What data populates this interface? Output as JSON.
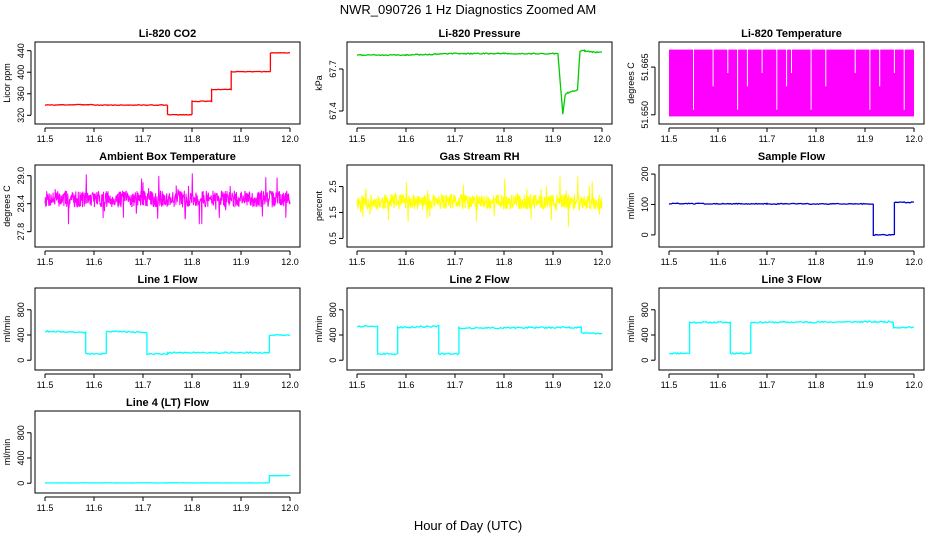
{
  "figure": {
    "title": "NWR_090726  1 Hz Diagnostics Zoomed AM",
    "xlabel": "Hour of Day (UTC)"
  },
  "chart_data": [
    {
      "type": "line",
      "title": "Li-820 CO2",
      "ylabel": "Licor ppm",
      "xlim": [
        11.5,
        12.0
      ],
      "ylim": [
        315,
        445
      ],
      "xticks": [
        "11.5",
        "11.6",
        "11.7",
        "11.8",
        "11.9",
        "12.0"
      ],
      "yticks": [
        "320",
        "360",
        "400",
        "440"
      ],
      "ytick_values": [
        320,
        360,
        400,
        440
      ],
      "color": "#ff0000",
      "noise": 0.6,
      "x": [
        11.5,
        11.6,
        11.6,
        11.75,
        11.75,
        11.8,
        11.8,
        11.84,
        11.84,
        11.88,
        11.88,
        11.96,
        11.96,
        12.0
      ],
      "y": [
        339,
        340,
        339,
        339,
        321,
        321,
        346,
        346,
        368,
        368,
        401,
        401,
        436,
        436
      ]
    },
    {
      "type": "line",
      "title": "Li-820 Pressure",
      "ylabel": "kPa",
      "xlim": [
        11.5,
        12.0
      ],
      "ylim": [
        67.35,
        67.85
      ],
      "xticks": [
        "11.5",
        "11.6",
        "11.7",
        "11.8",
        "11.9",
        "12.0"
      ],
      "yticks": [
        "67.4",
        "67.7"
      ],
      "ytick_values": [
        67.4,
        67.7
      ],
      "color": "#00cc00",
      "noise": 0.004,
      "x": [
        11.5,
        11.6,
        11.7,
        11.8,
        11.91,
        11.92,
        11.925,
        11.93,
        11.95,
        11.955,
        11.965,
        11.98,
        12.0
      ],
      "y": [
        67.8,
        67.8,
        67.81,
        67.81,
        67.81,
        67.38,
        67.52,
        67.53,
        67.55,
        67.83,
        67.83,
        67.82,
        67.82
      ]
    },
    {
      "type": "band",
      "title": "Li-820 Temperature",
      "ylabel": "degrees C",
      "xlim": [
        11.5,
        12.0
      ],
      "ylim": [
        51.649,
        51.671
      ],
      "xticks": [
        "11.5",
        "11.6",
        "11.7",
        "11.8",
        "11.9",
        "12.0"
      ],
      "yticks": [
        "51.650",
        "51.665"
      ],
      "ytick_values": [
        51.65,
        51.665
      ],
      "color": "#ff00ff",
      "band_low": 51.6495,
      "band_high": 51.6705,
      "gap_x": [
        11.55,
        11.59,
        11.62,
        11.64,
        11.66,
        11.69,
        11.72,
        11.74,
        11.75,
        11.79,
        11.82,
        11.88,
        11.91,
        11.93,
        11.96,
        11.98
      ]
    },
    {
      "type": "noise",
      "title": "Ambient Box Temperature",
      "ylabel": "degrees C",
      "xlim": [
        11.5,
        12.0
      ],
      "ylim": [
        27.6,
        29.1
      ],
      "xticks": [
        "11.5",
        "11.6",
        "11.7",
        "11.8",
        "11.9",
        "12.0"
      ],
      "yticks": [
        "27.8",
        "28.4",
        "29.0"
      ],
      "ytick_values": [
        27.8,
        28.4,
        29.0
      ],
      "color": "#ff00ff",
      "center": 28.5,
      "spread": 0.18,
      "spike": 0.55,
      "seed": 7
    },
    {
      "type": "noise",
      "title": "Gas Stream RH",
      "ylabel": "percent",
      "xlim": [
        11.5,
        12.0
      ],
      "ylim": [
        0.4,
        3.1
      ],
      "xticks": [
        "11.5",
        "11.6",
        "11.7",
        "11.8",
        "11.9",
        "12.0"
      ],
      "yticks": [
        "0.5",
        "1.5",
        "2.5"
      ],
      "ytick_values": [
        0.5,
        1.5,
        2.5
      ],
      "color": "#ffff00",
      "center": 1.9,
      "spread": 0.3,
      "spike": 1.0,
      "seed": 11
    },
    {
      "type": "line",
      "title": "Sample Flow",
      "ylabel": "ml/min",
      "xlim": [
        11.5,
        12.0
      ],
      "ylim": [
        -20,
        210
      ],
      "xticks": [
        "11.5",
        "11.6",
        "11.7",
        "11.8",
        "11.9",
        "12.0"
      ],
      "yticks": [
        "0",
        "100",
        "200"
      ],
      "ytick_values": [
        0,
        100,
        200
      ],
      "color": "#0000cc",
      "noise": 1.5,
      "x": [
        11.5,
        11.7,
        11.917,
        11.917,
        11.96,
        11.96,
        12.0
      ],
      "y": [
        103,
        102,
        102,
        0,
        0,
        107,
        107
      ]
    },
    {
      "type": "line",
      "title": "Line 1 Flow",
      "ylabel": "ml/min",
      "xlim": [
        11.5,
        12.0
      ],
      "ylim": [
        -60,
        1050
      ],
      "xticks": [
        "11.5",
        "11.6",
        "11.7",
        "11.8",
        "11.9",
        "12.0"
      ],
      "yticks": [
        "0",
        "400",
        "800"
      ],
      "ytick_values": [
        0,
        400,
        800
      ],
      "color": "#00ffff",
      "noise": 10,
      "x": [
        11.5,
        11.583,
        11.583,
        11.625,
        11.625,
        11.708,
        11.708,
        11.75,
        11.75,
        11.958,
        11.958,
        12.0
      ],
      "y": [
        460,
        440,
        100,
        100,
        460,
        440,
        100,
        100,
        120,
        120,
        400,
        400
      ]
    },
    {
      "type": "line",
      "title": "Line 2 Flow",
      "ylabel": "ml/min",
      "xlim": [
        11.5,
        12.0
      ],
      "ylim": [
        -60,
        1050
      ],
      "xticks": [
        "11.5",
        "11.6",
        "11.7",
        "11.8",
        "11.9",
        "12.0"
      ],
      "yticks": [
        "0",
        "400",
        "800"
      ],
      "ytick_values": [
        0,
        400,
        800
      ],
      "color": "#00ffff",
      "noise": 12,
      "x": [
        11.5,
        11.542,
        11.542,
        11.583,
        11.583,
        11.667,
        11.667,
        11.708,
        11.708,
        11.958,
        11.958,
        12.0
      ],
      "y": [
        540,
        540,
        100,
        100,
        520,
        540,
        100,
        100,
        510,
        520,
        430,
        430
      ]
    },
    {
      "type": "line",
      "title": "Line 3 Flow",
      "ylabel": "ml/min",
      "xlim": [
        11.5,
        12.0
      ],
      "ylim": [
        -60,
        1050
      ],
      "xticks": [
        "11.5",
        "11.6",
        "11.7",
        "11.8",
        "11.9",
        "12.0"
      ],
      "yticks": [
        "0",
        "400",
        "800"
      ],
      "ytick_values": [
        0,
        400,
        800
      ],
      "color": "#00ffff",
      "noise": 12,
      "x": [
        11.5,
        11.542,
        11.542,
        11.625,
        11.625,
        11.667,
        11.667,
        11.958,
        11.958,
        12.0
      ],
      "y": [
        110,
        110,
        600,
        600,
        110,
        110,
        600,
        610,
        520,
        520
      ]
    },
    {
      "type": "line",
      "title": "Line 4 (LT) Flow",
      "ylabel": "ml/min",
      "xlim": [
        11.5,
        12.0
      ],
      "ylim": [
        -60,
        1050
      ],
      "xticks": [
        "11.5",
        "11.6",
        "11.7",
        "11.8",
        "11.9",
        "12.0"
      ],
      "yticks": [
        "0",
        "400",
        "800"
      ],
      "ytick_values": [
        0,
        400,
        800
      ],
      "color": "#00ffff",
      "noise": 2,
      "x": [
        11.5,
        11.958,
        11.958,
        12.0
      ],
      "y": [
        5,
        5,
        120,
        120
      ]
    }
  ]
}
